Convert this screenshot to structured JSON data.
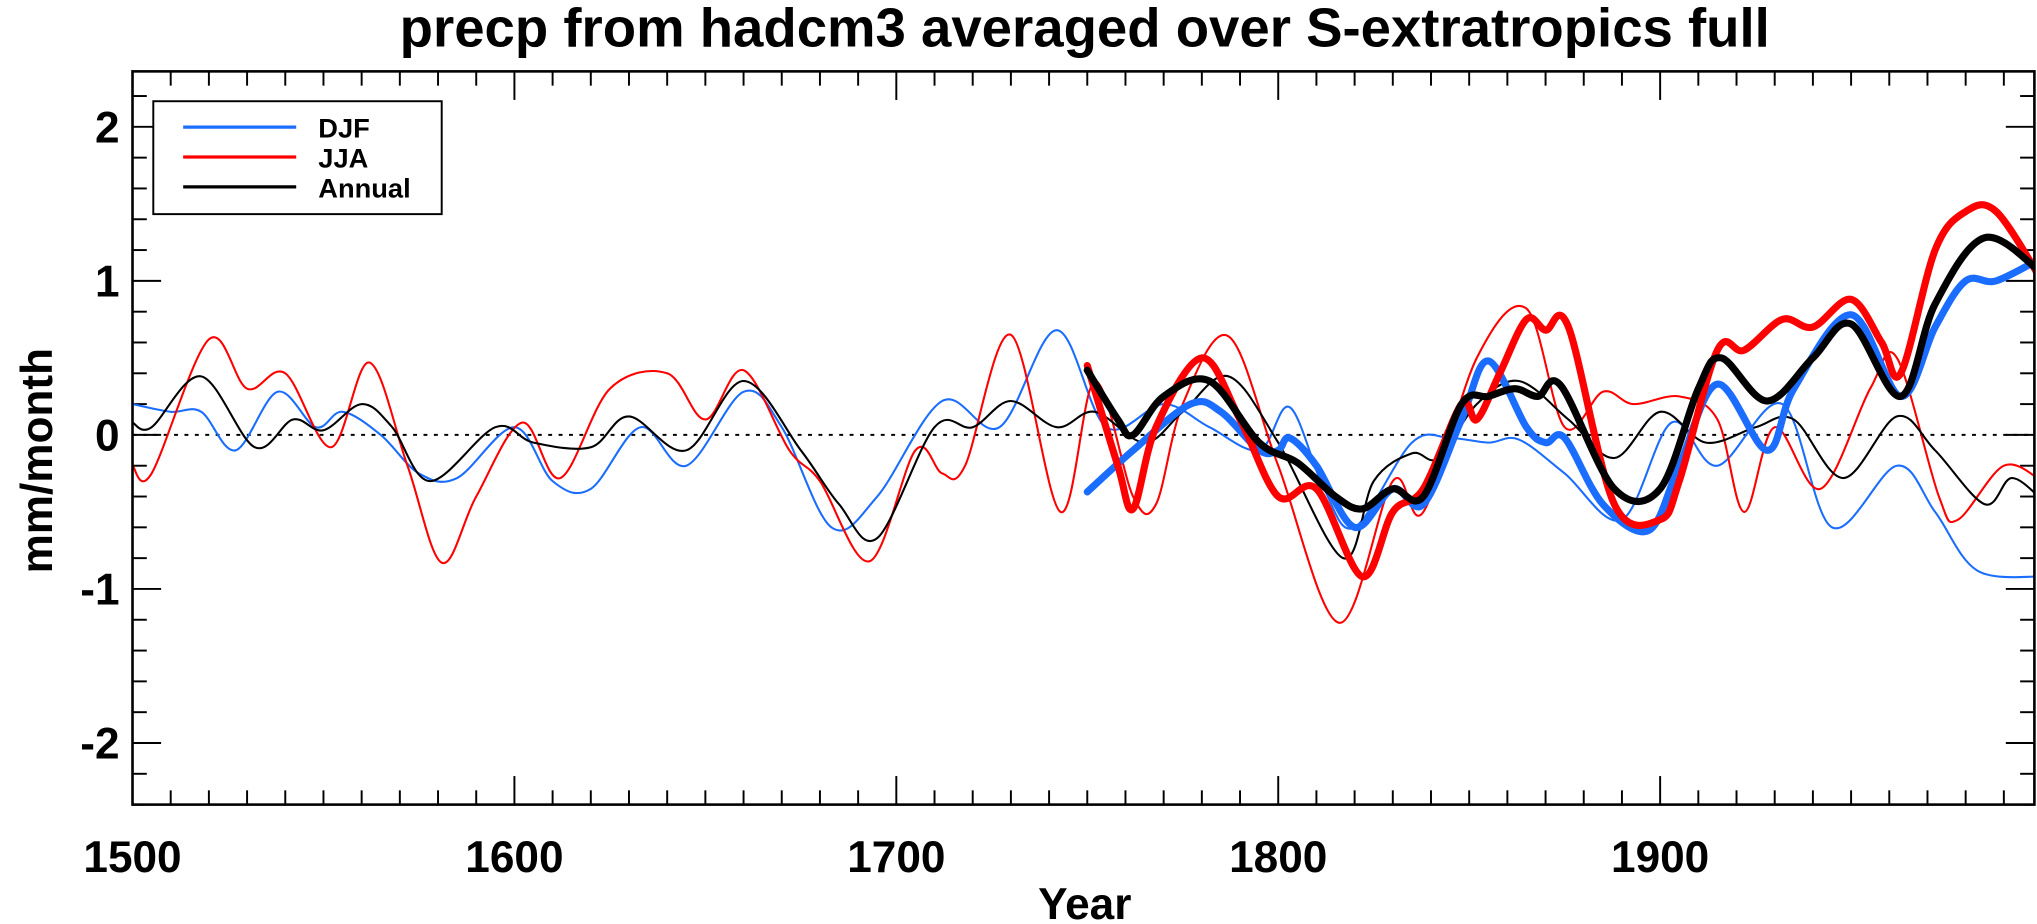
{
  "chart_data": {
    "type": "line",
    "title": "precp from hadcm3 averaged over S-extratropics full",
    "xlabel": "Year",
    "ylabel": "mm/month",
    "xlim": [
      1500,
      1998
    ],
    "ylim": [
      -2.4,
      2.36
    ],
    "x_ticks": [
      1500,
      1600,
      1700,
      1800,
      1900
    ],
    "x_tick_labels": [
      "1500",
      "1600",
      "1700",
      "1800",
      "1900"
    ],
    "y_ticks": [
      -2,
      -1,
      0,
      1,
      2
    ],
    "y_tick_labels": [
      "-2",
      "-1",
      "0",
      "1",
      "2"
    ],
    "zero_line": "dotted",
    "grid": false,
    "legend": {
      "placement": "top-left",
      "entries": [
        "DJF",
        "JJA",
        "Annual"
      ]
    },
    "colors": {
      "DJF": "#1a6dff",
      "JJA": "#ff0000",
      "Annual": "#000000"
    },
    "series": [
      {
        "name": "DJF",
        "style": "thin",
        "x": [
          1500,
          1510,
          1518,
          1527,
          1538,
          1548,
          1555,
          1565,
          1575,
          1585,
          1600,
          1610,
          1620,
          1633,
          1645,
          1660,
          1670,
          1683,
          1695,
          1712,
          1727,
          1742,
          1755,
          1770,
          1782,
          1795,
          1803,
          1812,
          1820,
          1835,
          1845,
          1855,
          1863,
          1875,
          1890,
          1903,
          1915,
          1932,
          1945,
          1962,
          1972,
          1983,
          2000
        ],
        "y": [
          0.2,
          0.15,
          0.15,
          -0.1,
          0.28,
          0.05,
          0.15,
          0,
          -0.25,
          -0.28,
          0.05,
          -0.3,
          -0.35,
          0.05,
          -0.2,
          0.28,
          0.05,
          -0.6,
          -0.4,
          0.22,
          0.05,
          0.68,
          0.05,
          0.2,
          0.05,
          -0.1,
          0.18,
          -0.35,
          -0.6,
          -0.05,
          -0.02,
          -0.05,
          -0.03,
          -0.25,
          -0.55,
          0.08,
          -0.2,
          0.2,
          -0.6,
          -0.2,
          -0.5,
          -0.88,
          -0.92
        ]
      },
      {
        "name": "JJA",
        "style": "thin",
        "x": [
          1500,
          1505,
          1520,
          1530,
          1540,
          1552,
          1562,
          1572,
          1581,
          1590,
          1602,
          1612,
          1625,
          1640,
          1650,
          1660,
          1672,
          1680,
          1693,
          1705,
          1712,
          1718,
          1730,
          1743,
          1752,
          1762,
          1768,
          1775,
          1787,
          1800,
          1816,
          1830,
          1838,
          1852,
          1865,
          1875,
          1885,
          1893,
          1905,
          1915,
          1922,
          1930,
          1942,
          1955,
          1962,
          1973,
          1978,
          1990,
          2000
        ],
        "y": [
          -0.2,
          -0.25,
          0.62,
          0.3,
          0.4,
          -0.08,
          0.47,
          -0.2,
          -0.83,
          -0.4,
          0.08,
          -0.28,
          0.3,
          0.4,
          0.1,
          0.42,
          -0.1,
          -0.3,
          -0.82,
          -0.1,
          -0.25,
          -0.2,
          0.65,
          -0.5,
          0.35,
          -0.4,
          -0.45,
          0.2,
          0.64,
          -0.2,
          -1.22,
          -0.3,
          -0.5,
          0.5,
          0.82,
          0.05,
          0.28,
          0.2,
          0.25,
          0.1,
          -0.5,
          0.05,
          -0.35,
          0.3,
          0.5,
          -0.4,
          -0.55,
          -0.2,
          -0.3
        ]
      },
      {
        "name": "Annual",
        "style": "thin",
        "x": [
          1500,
          1505,
          1518,
          1532,
          1542,
          1550,
          1560,
          1568,
          1578,
          1595,
          1605,
          1620,
          1630,
          1645,
          1660,
          1675,
          1685,
          1695,
          1710,
          1720,
          1730,
          1742,
          1752,
          1765,
          1775,
          1787,
          1800,
          1817,
          1825,
          1835,
          1842,
          1852,
          1863,
          1876,
          1888,
          1900,
          1912,
          1925,
          1935,
          1948,
          1962,
          1972,
          1985,
          1992,
          2000
        ],
        "y": [
          0.08,
          0.05,
          0.38,
          -0.08,
          0.1,
          0.03,
          0.2,
          0.05,
          -0.3,
          0.05,
          -0.05,
          -0.08,
          0.12,
          -0.1,
          0.35,
          -0.1,
          -0.45,
          -0.67,
          0.05,
          0.05,
          0.22,
          0.05,
          0.15,
          -0.05,
          0.15,
          0.38,
          -0.05,
          -0.8,
          -0.3,
          -0.12,
          -0.15,
          0.2,
          0.35,
          0.1,
          -0.15,
          0.15,
          -0.05,
          0.05,
          0.1,
          -0.28,
          0.12,
          -0.1,
          -0.45,
          -0.28,
          -0.42
        ]
      },
      {
        "name": "DJF",
        "style": "thick",
        "x": [
          1750,
          1762,
          1777,
          1785,
          1795,
          1800,
          1803,
          1810,
          1820,
          1830,
          1838,
          1848,
          1855,
          1865,
          1870,
          1875,
          1885,
          1897,
          1905,
          1915,
          1928,
          1935,
          1950,
          1963,
          1972,
          1980,
          1988,
          2000
        ],
        "y": [
          -0.37,
          -0.1,
          0.2,
          0.15,
          -0.1,
          -0.1,
          -0.02,
          -0.2,
          -0.6,
          -0.35,
          -0.45,
          0.1,
          0.48,
          0.05,
          -0.05,
          -0.02,
          -0.45,
          -0.62,
          -0.2,
          0.33,
          -0.1,
          0.3,
          0.78,
          0.25,
          0.7,
          1.0,
          1.0,
          1.15
        ]
      },
      {
        "name": "JJA",
        "style": "thick",
        "x": [
          1750,
          1758,
          1762,
          1768,
          1780,
          1790,
          1800,
          1810,
          1822,
          1830,
          1838,
          1848,
          1852,
          1858,
          1865,
          1870,
          1876,
          1888,
          1900,
          1905,
          1915,
          1922,
          1932,
          1940,
          1950,
          1958,
          1963,
          1972,
          1980,
          1988,
          2000
        ],
        "y": [
          0.45,
          -0.2,
          -0.48,
          0.05,
          0.5,
          0.1,
          -0.4,
          -0.35,
          -0.92,
          -0.5,
          -0.35,
          0.2,
          0.1,
          0.4,
          0.75,
          0.68,
          0.7,
          -0.45,
          -0.55,
          -0.3,
          0.55,
          0.55,
          0.75,
          0.7,
          0.88,
          0.6,
          0.4,
          1.2,
          1.45,
          1.45,
          1.0
        ]
      },
      {
        "name": "Annual",
        "style": "thick",
        "x": [
          1750,
          1758,
          1762,
          1770,
          1782,
          1795,
          1805,
          1815,
          1822,
          1830,
          1838,
          1848,
          1855,
          1862,
          1868,
          1874,
          1888,
          1900,
          1910,
          1916,
          1928,
          1940,
          1950,
          1963,
          1972,
          1985,
          2000
        ],
        "y": [
          0.42,
          0.1,
          0,
          0.25,
          0.35,
          -0.05,
          -0.18,
          -0.4,
          -0.48,
          -0.35,
          -0.4,
          0.2,
          0.25,
          0.3,
          0.25,
          0.32,
          -0.35,
          -0.35,
          0.3,
          0.5,
          0.22,
          0.5,
          0.72,
          0.25,
          0.85,
          1.28,
          1.05
        ]
      }
    ]
  }
}
